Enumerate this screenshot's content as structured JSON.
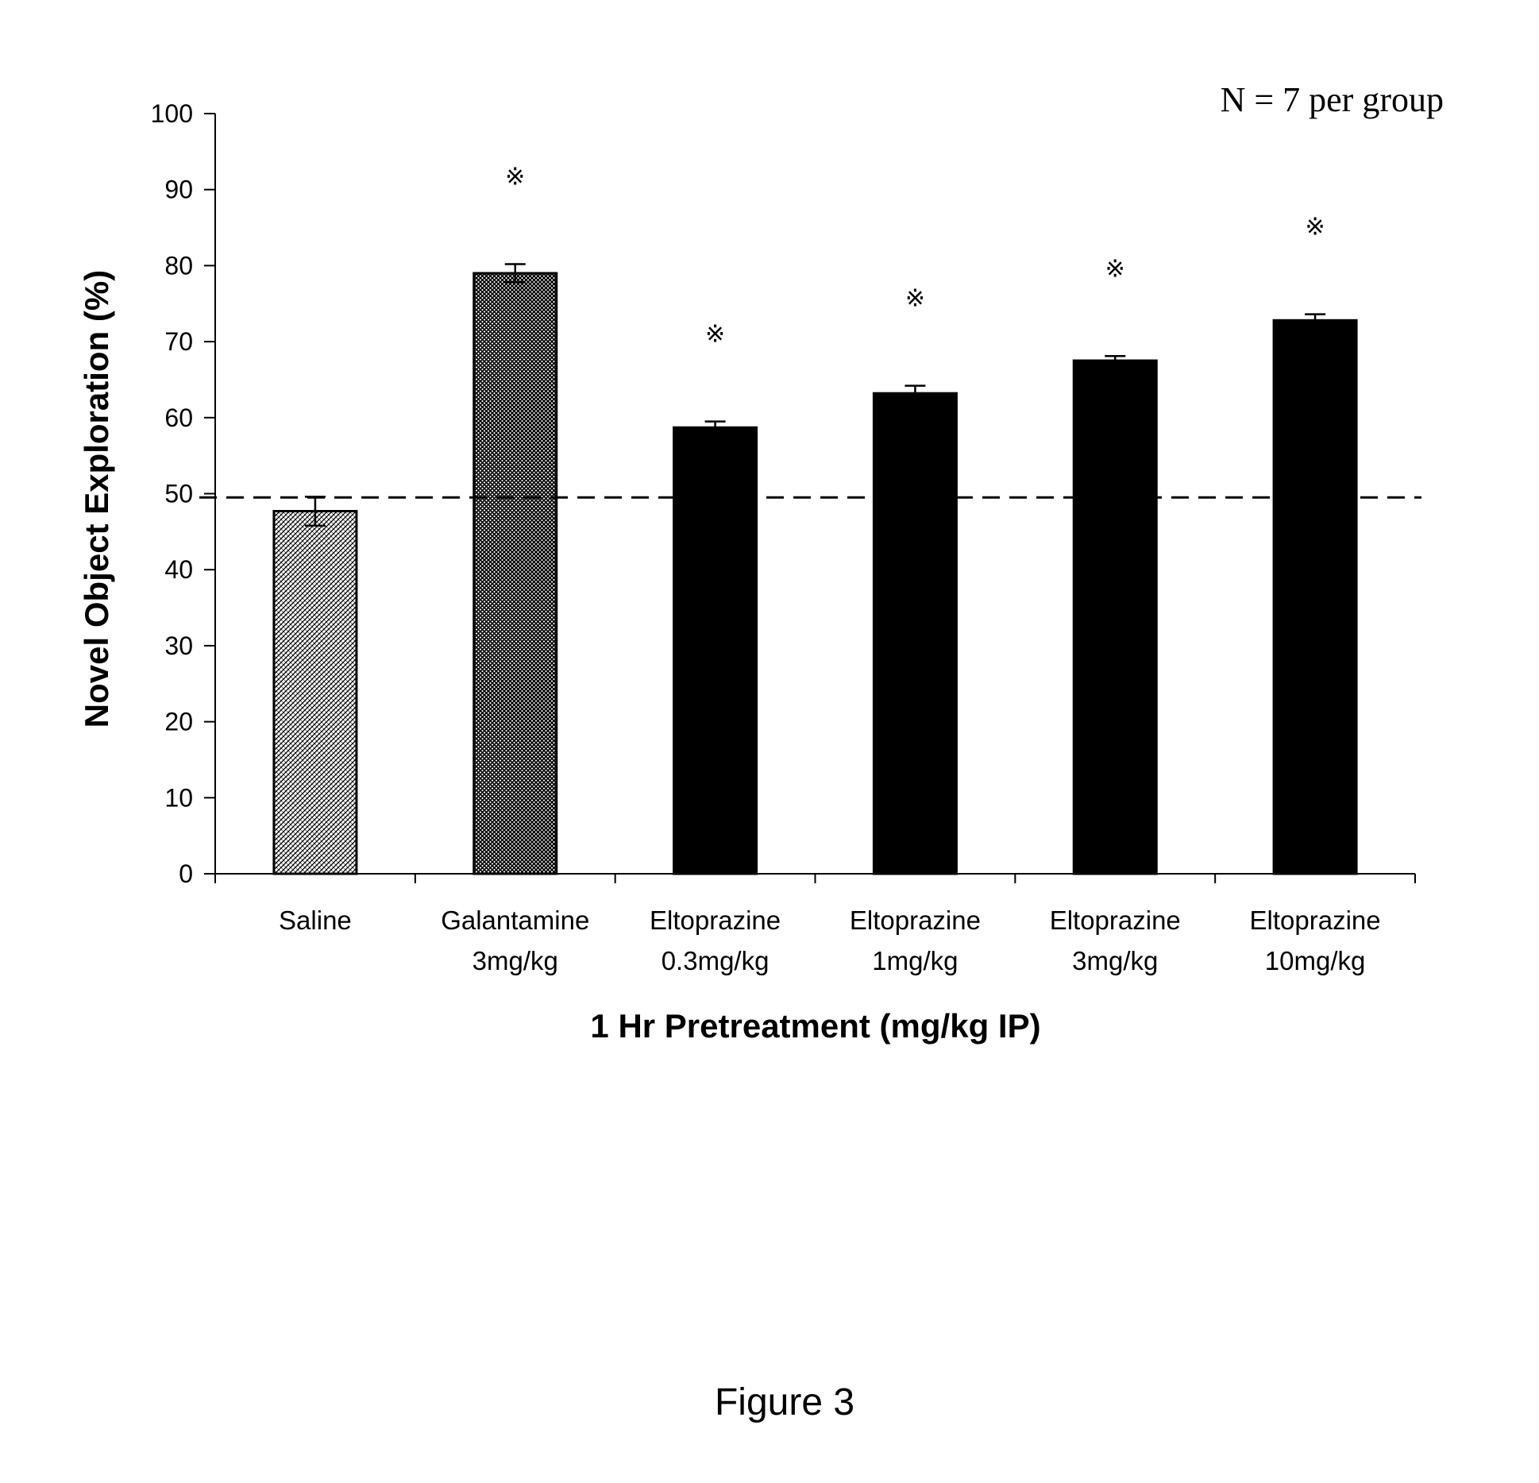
{
  "chart_data": {
    "type": "bar",
    "categories": [
      [
        "Saline"
      ],
      [
        "Galantamine",
        "3mg/kg"
      ],
      [
        "Eltoprazine",
        "0.3mg/kg"
      ],
      [
        "Eltoprazine",
        "1mg/kg"
      ],
      [
        "Eltoprazine",
        "3mg/kg"
      ],
      [
        "Eltoprazine",
        "10mg/kg"
      ]
    ],
    "values": [
      47.7,
      79.0,
      58.7,
      63.2,
      67.5,
      72.8
    ],
    "errors": [
      1.9,
      1.2,
      0.8,
      1.0,
      0.6,
      0.8
    ],
    "significant": [
      false,
      true,
      true,
      true,
      true,
      true
    ],
    "significance_marker": "※",
    "fills": [
      "light-hatch",
      "dark-hatch",
      "solid",
      "solid",
      "solid",
      "solid"
    ],
    "ylabel": "Novel Object Exploration (%)",
    "xlabel": "1 Hr Pretreatment (mg/kg IP)",
    "ylim": [
      0,
      100
    ],
    "yticks": [
      0,
      10,
      20,
      30,
      40,
      50,
      60,
      70,
      80,
      90,
      100
    ],
    "reference_line": 49.5,
    "grid": false,
    "annotation": "N = 7 per group",
    "caption": "Figure 3",
    "colors": {
      "bar": "#000000",
      "light_hatch_bg": "#ffffff",
      "dark_hatch_bg": "#4a4a4a",
      "axis": "#000000"
    }
  }
}
